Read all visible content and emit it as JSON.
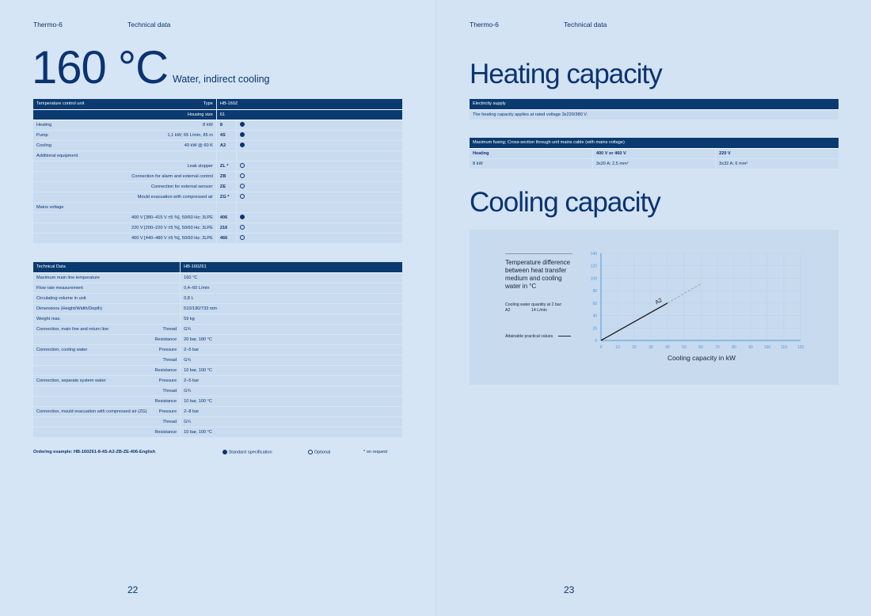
{
  "left": {
    "header": {
      "product": "Thermo-6",
      "section": "Technical data"
    },
    "title": "160 °C",
    "subtitle": "Water, indirect cooling",
    "config_table": {
      "header": [
        {
          "label": "Temperature control unit",
          "key": "Type",
          "value": "HB-160Z"
        },
        {
          "label": "",
          "key": "Housing size",
          "value": "61"
        }
      ],
      "rows": [
        {
          "label": "Heating",
          "detail": "8 kW",
          "code": "8",
          "mark": "standard"
        },
        {
          "label": "Pump",
          "detail": "1,1 kW; 65 L/min, 85 m",
          "code": "4S",
          "mark": "standard"
        },
        {
          "label": "Cooling",
          "detail": "40 kW @ 60 K",
          "code": "A2",
          "mark": "standard"
        },
        {
          "label": "Additional equipment",
          "detail": "",
          "code": "",
          "mark": ""
        },
        {
          "label": "",
          "detail": "Leak stopper",
          "code": "ZL *",
          "mark": "optional"
        },
        {
          "label": "",
          "detail": "Connection for alarm and external control",
          "code": "ZB",
          "mark": "optional"
        },
        {
          "label": "",
          "detail": "Connection for external sensorr",
          "code": "ZE",
          "mark": "optional"
        },
        {
          "label": "",
          "detail": "Mould evacuation with compressed air",
          "code": "ZG *",
          "mark": "optional"
        },
        {
          "label": "Mains voltage",
          "detail": "",
          "code": "",
          "mark": ""
        },
        {
          "label": "",
          "detail": "400 V [380–415 V ±5 %], 50/60 Hz; 3LPE",
          "code": "406",
          "mark": "standard"
        },
        {
          "label": "",
          "detail": "220 V [200–220 V ±5 %], 50/60 Hz; 3LPE",
          "code": "216",
          "mark": "optional"
        },
        {
          "label": "",
          "detail": "460 V [440–480 V ±5 %], 50/60 Hz; 3LPE",
          "code": "466",
          "mark": "optional"
        }
      ]
    },
    "tech_table": {
      "header": {
        "label": "Technical Data",
        "value": "HB-160Z61"
      },
      "rows": [
        {
          "label": "Maximum main line temperature",
          "key": "",
          "value": "160 °C"
        },
        {
          "label": "Flow rate measurement",
          "key": "",
          "value": "0,4–60 L/min"
        },
        {
          "label": "Circulating volume in unit",
          "key": "",
          "value": "0,8 L"
        },
        {
          "label": "Dimensions (Height/Width/Depth)",
          "key": "",
          "value": "510/190/733 mm"
        },
        {
          "label": "Weight max.",
          "key": "",
          "value": "59 kg"
        },
        {
          "label": "Connection, main line and return line",
          "key": "Thread",
          "value": "G¾"
        },
        {
          "label": "",
          "key": "Resistance",
          "value": "20 bar, 180 °C"
        },
        {
          "label": "Connection, cooling water",
          "key": "Pressure",
          "value": "2–5 bar"
        },
        {
          "label": "",
          "key": "Thread",
          "value": "G¾"
        },
        {
          "label": "",
          "key": "Resistance",
          "value": "10 bar, 100 °C"
        },
        {
          "label": "Connection, separate system water",
          "key": "Pressure",
          "value": "2–5 bar"
        },
        {
          "label": "",
          "key": "Thread",
          "value": "G¾"
        },
        {
          "label": "",
          "key": "Resistance",
          "value": "10 bar, 100 °C"
        },
        {
          "label": "Connection, mould evacuation with compressed air (ZG)",
          "key": "Pressure",
          "value": "2–8 bar"
        },
        {
          "label": "",
          "key": "Thread",
          "value": "G¼"
        },
        {
          "label": "",
          "key": "Resistance",
          "value": "10 bar, 100 °C"
        }
      ]
    },
    "footer": {
      "ordering": "Ordering example: HB-160Z61-8-4S-A2-ZB-ZE-406-English",
      "standard": "Standard specification",
      "optional": "Optional",
      "request": "* on request"
    },
    "page_number": "22"
  },
  "right": {
    "header": {
      "product": "Thermo-6",
      "section": "Technical data"
    },
    "heating_title": "Heating capacity",
    "supply_table": {
      "header": "Electricity supply",
      "text": "The heating capacity applies at rated voltage 3x220/380 V."
    },
    "fusing_table": {
      "header": "Maximum fusing; Cross-section through unit mains cable (with mains voltage)",
      "rows": [
        [
          "Heating",
          "400 V or 460 V",
          "220 V"
        ],
        [
          "8 kW",
          "3x20 A; 2,5 mm²",
          "3x32 A; 6 mm²"
        ]
      ]
    },
    "cooling_title": "Cooling capacity",
    "chart_legend": {
      "title": "Temperature difference between heat transfer medium and cooling water in °C",
      "water_label": "Cooling water quantity at 2 bar:",
      "water_code": "A2",
      "water_value": "14 L/min",
      "practical": "Attainable practical values"
    },
    "page_number": "23"
  },
  "chart_data": {
    "type": "line",
    "xlabel": "Cooling capacity in kW",
    "ylabel": "Temperature difference between heat transfer medium and cooling water in °C",
    "xlim": [
      0,
      120
    ],
    "ylim": [
      0,
      140
    ],
    "xticks": [
      0,
      10,
      20,
      30,
      40,
      50,
      60,
      70,
      80,
      90,
      100,
      110,
      120
    ],
    "yticks": [
      0,
      20,
      40,
      60,
      80,
      100,
      120,
      140
    ],
    "grid": true,
    "series": [
      {
        "name": "A2",
        "x": [
          0,
          40
        ],
        "y": [
          0,
          60
        ],
        "style": "solid"
      },
      {
        "name": "",
        "x": [
          40,
          60
        ],
        "y": [
          60,
          91
        ],
        "style": "dashed"
      }
    ],
    "colors": {
      "axis": "#4a9be0",
      "line": "#111111",
      "dashed": "#9aa4b4",
      "grid": "#b8d2ee"
    }
  }
}
